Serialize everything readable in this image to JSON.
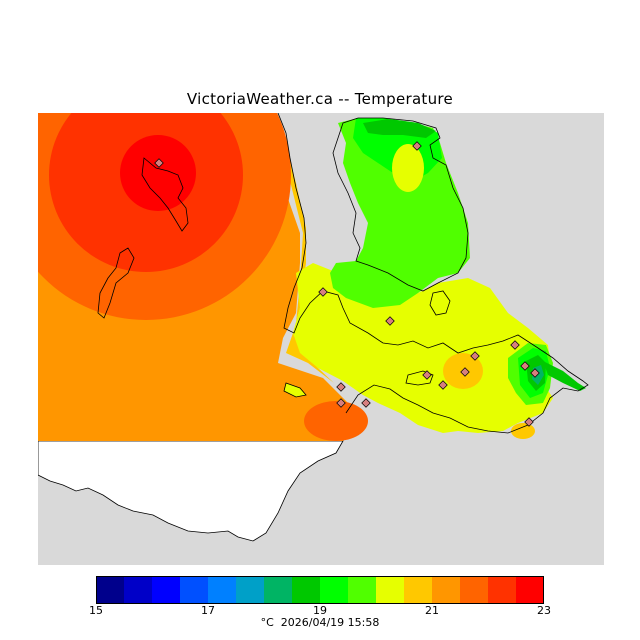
{
  "title": "VictoriaWeather.ca -- Temperature",
  "legend": {
    "colors": [
      "#00008c",
      "#0000c8",
      "#0000ff",
      "#0050ff",
      "#0080ff",
      "#00a0c8",
      "#00b464",
      "#00c800",
      "#00ff00",
      "#50ff00",
      "#e6ff00",
      "#ffc800",
      "#ff9600",
      "#ff6400",
      "#ff3200",
      "#ff0000"
    ],
    "ticks": [
      "15",
      "17",
      "19",
      "21",
      "23"
    ]
  },
  "caption": {
    "unit": "°C",
    "timestamp": "2026/04/19 15:58"
  },
  "map_colors": {
    "sea_gray": "#d9d9d9",
    "land_white": "#ffffff",
    "station_fill": "#d67f7f"
  }
}
